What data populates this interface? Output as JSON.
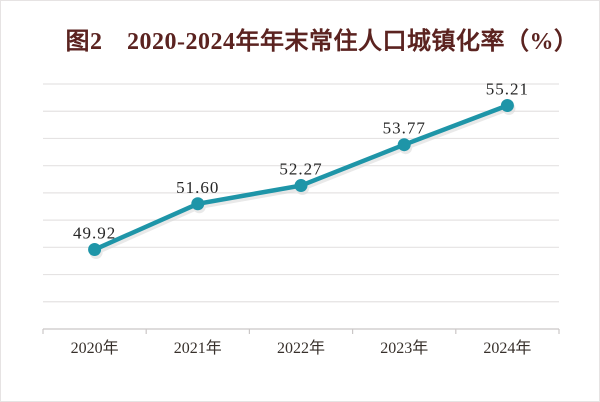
{
  "chart_data": {
    "type": "line",
    "title": "图2　2020-2024年年末常住人口城镇化率（%）",
    "categories": [
      "2020年",
      "2021年",
      "2022年",
      "2023年",
      "2024年"
    ],
    "values": [
      49.92,
      51.6,
      52.27,
      53.77,
      55.21
    ],
    "data_labels": [
      "49.92",
      "51.60",
      "52.27",
      "53.77",
      "55.21"
    ],
    "ylim": [
      47,
      56
    ],
    "gridline_step": 1,
    "grid": "horizontal-only",
    "legend": "none",
    "y_axis_tick_labels": "none",
    "colors": {
      "line": "#1e95a8",
      "marker": "#1e95a8",
      "shadow": "#d8d8d8",
      "gridline": "#e5e3e3",
      "axis": "#cbc7c7",
      "title": "#5b2320",
      "data_label": "#262626",
      "axis_label": "#37302b"
    }
  }
}
